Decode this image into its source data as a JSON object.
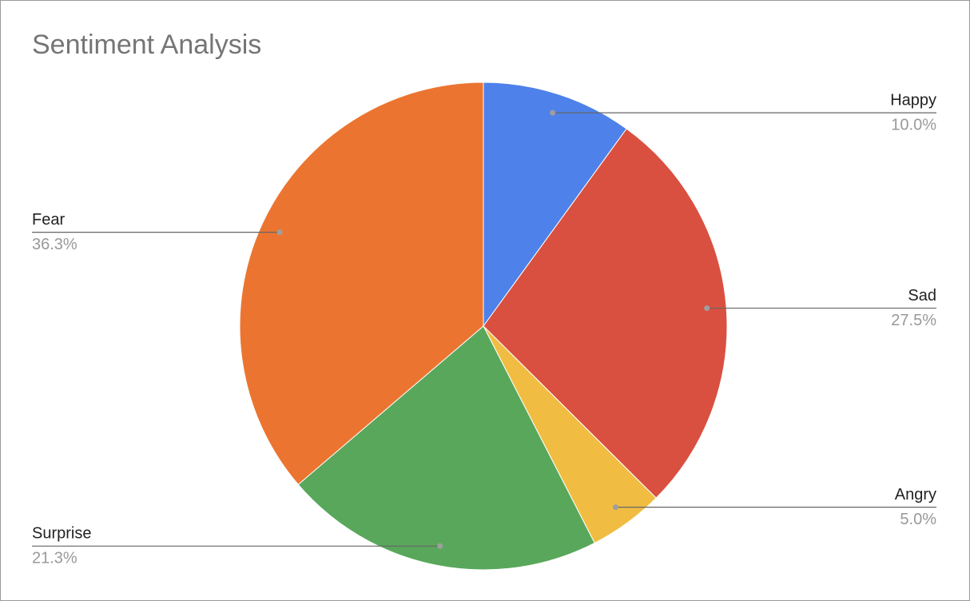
{
  "chart_data": {
    "type": "pie",
    "title": "Sentiment Analysis",
    "categories": [
      "Happy",
      "Sad",
      "Angry",
      "Surprise",
      "Fear"
    ],
    "values": [
      10.0,
      27.5,
      5.0,
      21.3,
      36.3
    ],
    "value_labels": [
      "10.0%",
      "27.5%",
      "5.0%",
      "21.3%",
      "36.3%"
    ],
    "colors": [
      "#4e81e9",
      "#d95040",
      "#f0bd42",
      "#59a75b",
      "#eb7530"
    ]
  }
}
